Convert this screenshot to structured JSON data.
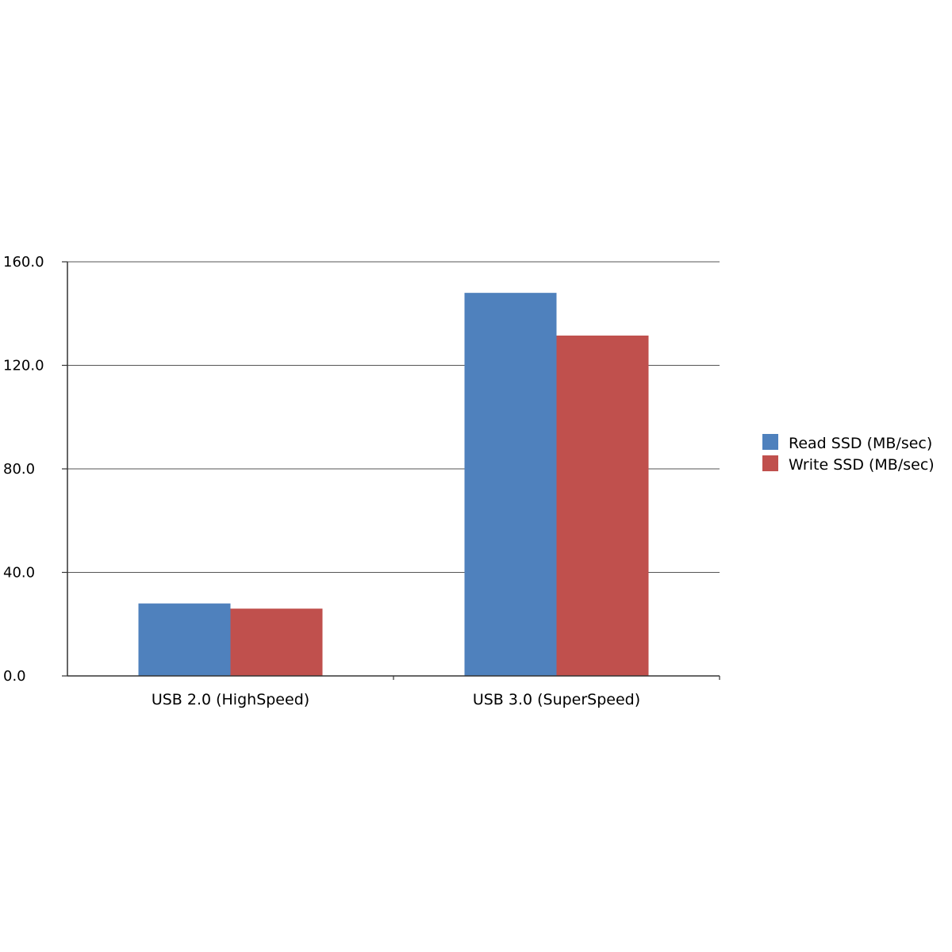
{
  "chart_data": {
    "type": "bar",
    "categories": [
      "USB 2.0 (HighSpeed)",
      "USB 3.0 (SuperSpeed)"
    ],
    "series": [
      {
        "name": "Read SSD (MB/sec)",
        "values": [
          28.0,
          148.0
        ],
        "color": "#4f81bd"
      },
      {
        "name": "Write SSD (MB/sec)",
        "values": [
          26.0,
          131.5
        ],
        "color": "#c0504d"
      }
    ],
    "yticks": [
      "0.0",
      "40.0",
      "80.0",
      "120.0",
      "160.0"
    ],
    "ylim": [
      0,
      160
    ],
    "grid": true,
    "legend_position": "right"
  }
}
